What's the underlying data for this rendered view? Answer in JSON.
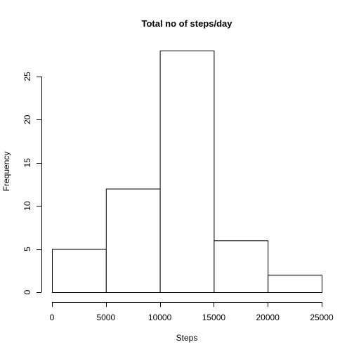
{
  "chart_data": {
    "type": "bar",
    "title": "Total no of steps/day",
    "xlabel": "Steps",
    "ylabel": "Frequency",
    "bins": [
      {
        "from": 0,
        "to": 5000,
        "count": 5
      },
      {
        "from": 5000,
        "to": 10000,
        "count": 12
      },
      {
        "from": 10000,
        "to": 15000,
        "count": 28
      },
      {
        "from": 15000,
        "to": 20000,
        "count": 6
      },
      {
        "from": 20000,
        "to": 25000,
        "count": 2
      }
    ],
    "xlim": [
      0,
      25000
    ],
    "ylim": [
      0,
      28
    ],
    "xticks": [
      0,
      5000,
      10000,
      15000,
      20000,
      25000
    ],
    "yticks": [
      0,
      5,
      10,
      15,
      20,
      25
    ],
    "grid": false
  }
}
